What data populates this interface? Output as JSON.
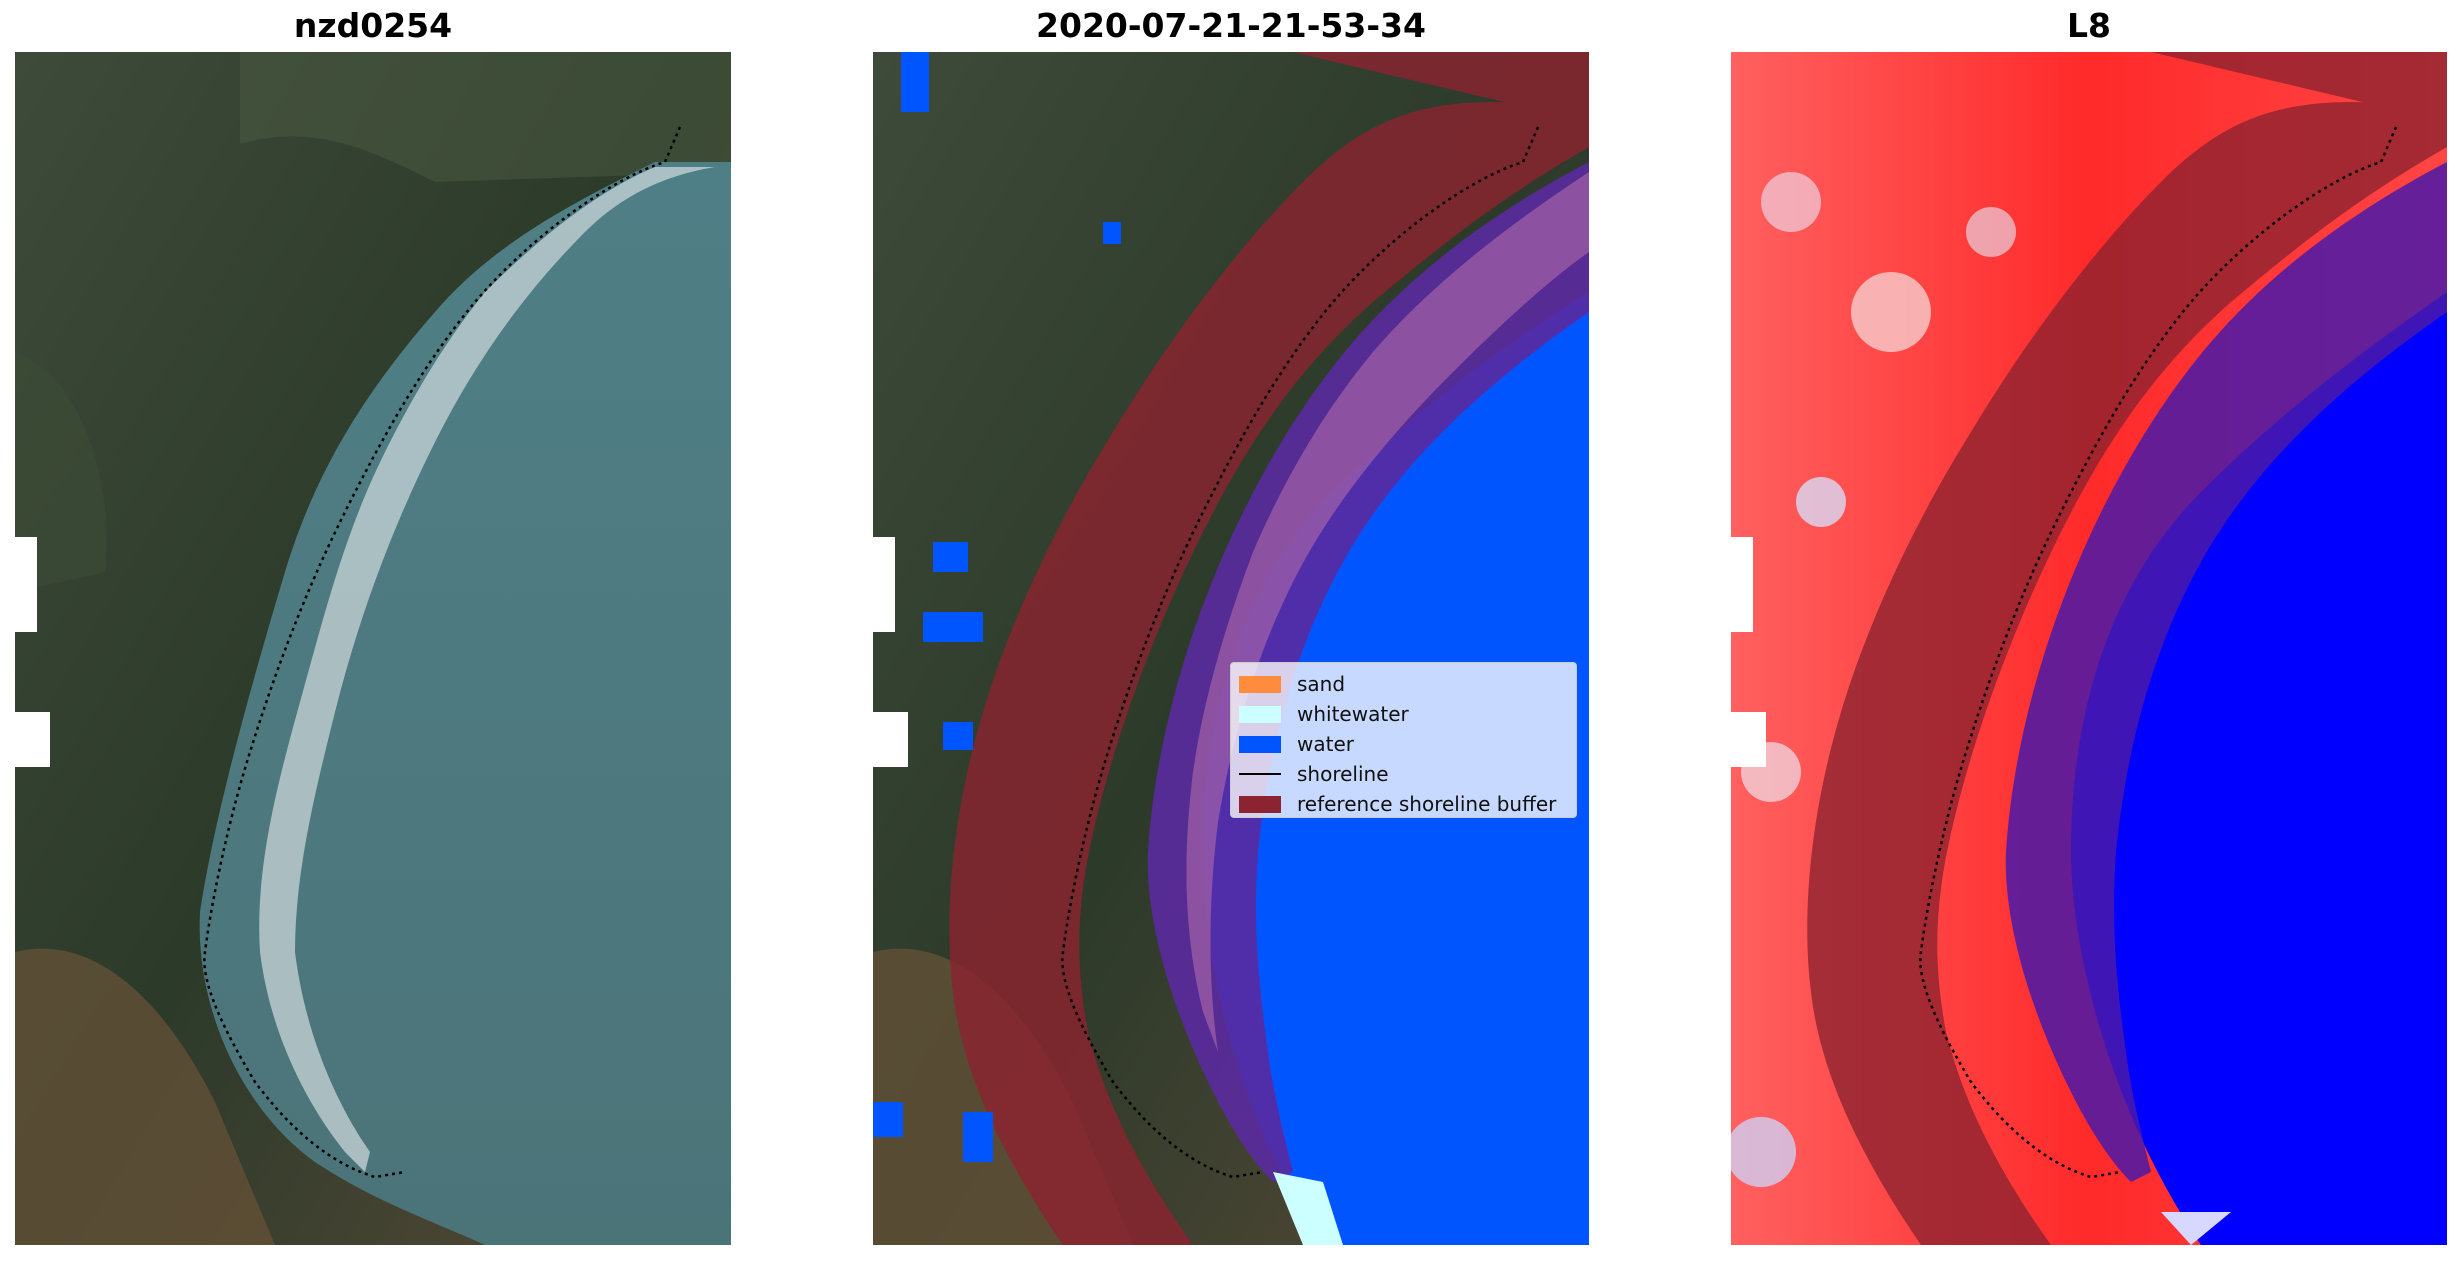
{
  "panels": [
    {
      "title": "nzd0254"
    },
    {
      "title": "2020-07-21-21-53-34"
    },
    {
      "title": "L8"
    }
  ],
  "legend": {
    "items": [
      {
        "label": "sand",
        "color": "#ff8c3c",
        "kind": "patch"
      },
      {
        "label": "whitewater",
        "color": "#ccffff",
        "kind": "patch"
      },
      {
        "label": "water",
        "color": "#0055ff",
        "kind": "patch"
      },
      {
        "label": "shoreline",
        "color": "#000000",
        "kind": "line"
      },
      {
        "label": "reference shoreline buffer",
        "color": "#8b2330",
        "kind": "patch"
      }
    ]
  },
  "colors": {
    "land_dark": "#2f3a2c",
    "ocean_rgb": "#4a7a80",
    "water_class": "#0055ff",
    "buffer": "#8b2330",
    "index_red": "#ff2020",
    "index_blue": "#0000ff"
  }
}
